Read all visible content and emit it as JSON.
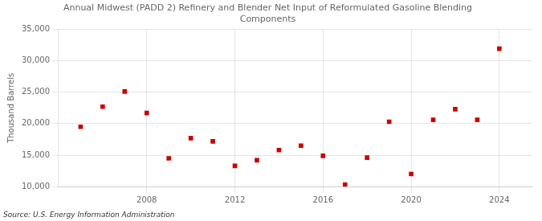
{
  "chart_data": {
    "type": "scatter",
    "title": "Annual Midwest (PADD 2) Refinery and Blender Net Input of Reformulated Gasoline Blending\nComponents",
    "y_label": "Thousand Barrels",
    "source": "Source: U.S. Energy Information Administration",
    "x": [
      2005,
      2006,
      2007,
      2008,
      2009,
      2010,
      2011,
      2012,
      2013,
      2014,
      2015,
      2016,
      2017,
      2018,
      2019,
      2020,
      2021,
      2022,
      2023,
      2024
    ],
    "values": [
      19500,
      22700,
      25100,
      21700,
      14500,
      17700,
      17200,
      13300,
      14200,
      15800,
      16500,
      14900,
      10300,
      14600,
      20300,
      12000,
      20600,
      22300,
      20600,
      31900
    ],
    "xlim": [
      2004.0,
      2025.5
    ],
    "xticks": [
      2008,
      2012,
      2016,
      2020,
      2024
    ],
    "ylim": [
      10000,
      35000
    ],
    "yticks": [
      {
        "value": 10000,
        "label": "10,000"
      },
      {
        "value": 15000,
        "label": "15,000"
      },
      {
        "value": 20000,
        "label": "20,000"
      },
      {
        "value": 25000,
        "label": "25,000"
      },
      {
        "value": 30000,
        "label": "30,000"
      },
      {
        "value": 35000,
        "label": "35,000"
      }
    ],
    "color": "#cc0000",
    "marker": "square",
    "grid": true
  }
}
